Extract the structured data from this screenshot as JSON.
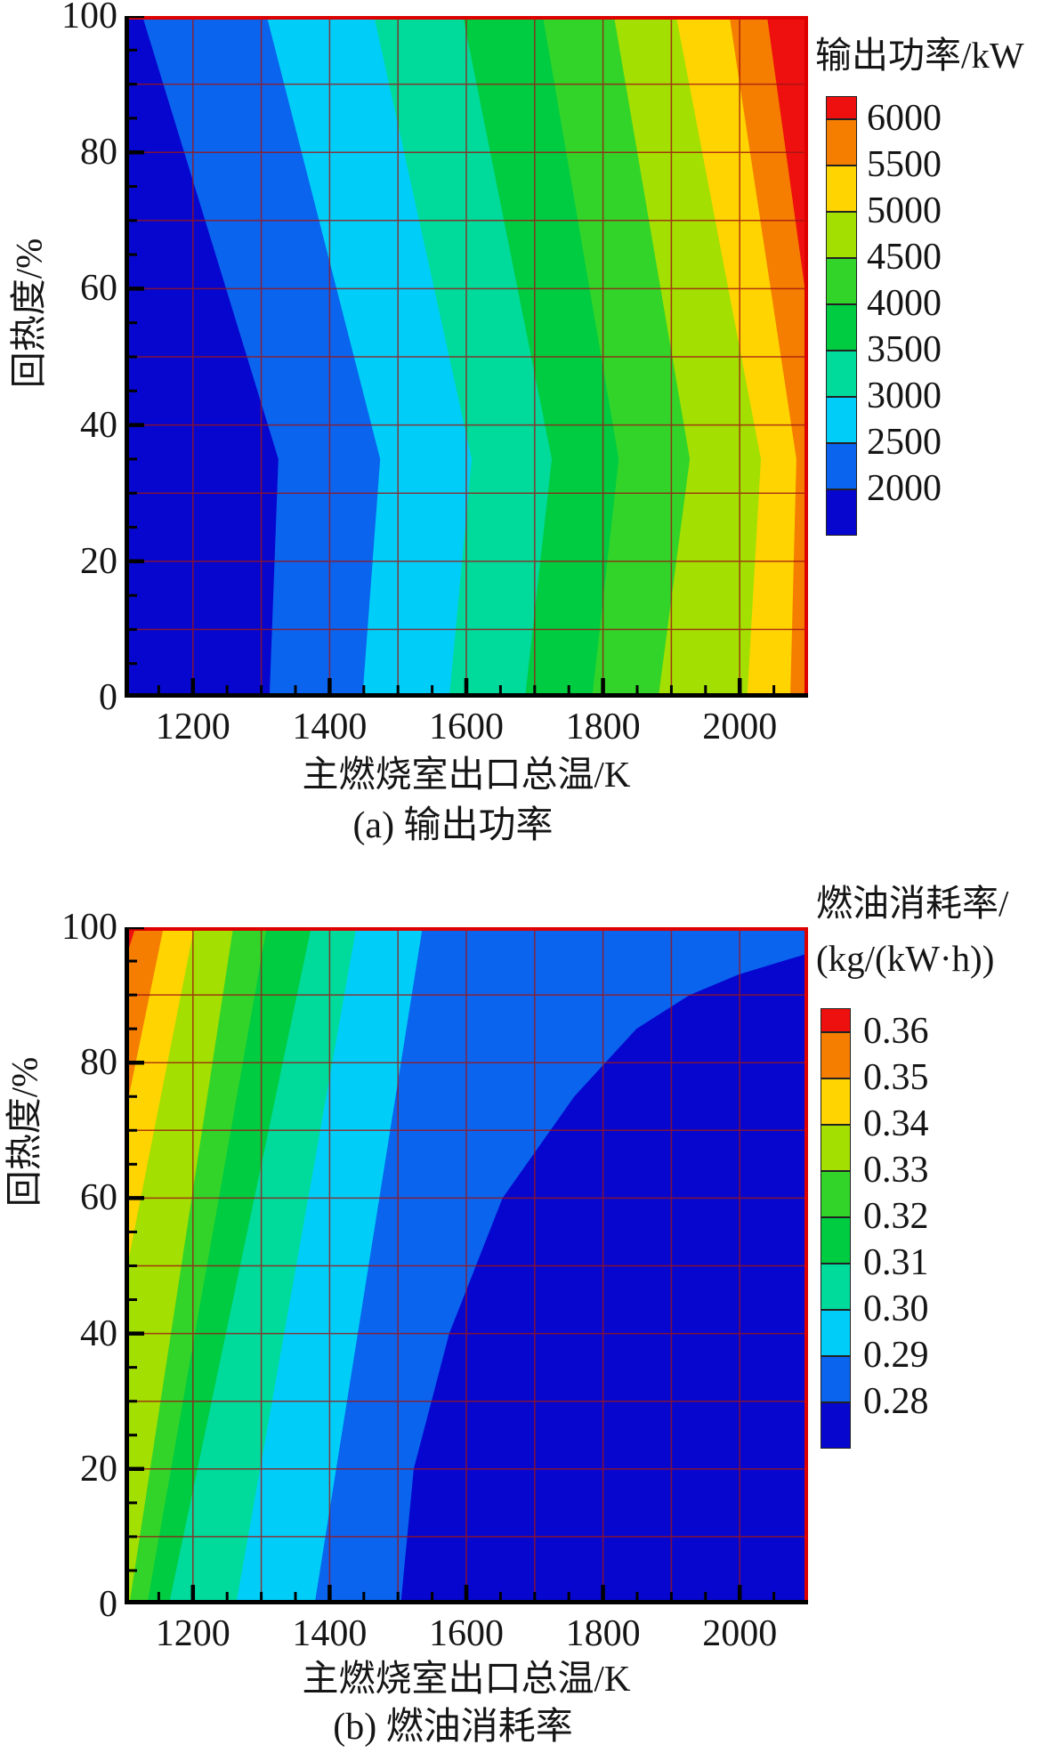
{
  "page": {
    "background": "#FFFFFF"
  },
  "styles": {
    "frame_color": "#DE0000",
    "axis_color": "#000000",
    "grid_color": "#9E1414",
    "tick_color": "#000000"
  },
  "chart_data": [
    {
      "type": "contour",
      "panel_caption": "(a) 输出功率",
      "xlabel": "主燃烧室出口总温/K",
      "ylabel": "回热度/%",
      "legend_title_lines": [
        "输出功率/kW"
      ],
      "legend_labels": [
        "6000",
        "5500",
        "5000",
        "4500",
        "4000",
        "3500",
        "3000",
        "2500",
        "2000"
      ],
      "legend_colors_top_to_bottom": [
        "#EE0F0F",
        "#F57D00",
        "#FFD400",
        "#A3DF00",
        "#32D42A",
        "#00CC41",
        "#00DA9B",
        "#00CEF8",
        "#0A64EE",
        "#0706CE"
      ],
      "x_range": [
        1100,
        2100
      ],
      "y_range": [
        0,
        100
      ],
      "x_tick_labels": [
        "1200",
        "1400",
        "1600",
        "1800",
        "2000"
      ],
      "x_major_ticks": [
        1200,
        1400,
        1600,
        1800,
        2000
      ],
      "x_minor_step": 50,
      "y_tick_labels": [
        "0",
        "20",
        "40",
        "60",
        "80",
        "100"
      ],
      "y_major_ticks": [
        0,
        20,
        40,
        60,
        80,
        100
      ],
      "y_minor_step": 5,
      "grid_x_step": 100,
      "grid_y_step": 10,
      "band_colors_left_to_right": [
        "#0706CE",
        "#0A64EE",
        "#00CEF8",
        "#00DA9B",
        "#00CC41",
        "#32D42A",
        "#A3DF00",
        "#FFD400",
        "#F57D00",
        "#EE0F0F"
      ],
      "contour_levels": [
        2000,
        2500,
        3000,
        3500,
        4000,
        4500,
        5000,
        5500,
        6000
      ],
      "contour_lines": [
        {
          "level": 2000,
          "points": [
            [
              1312,
              0
            ],
            [
              1325,
              35
            ],
            [
              1126,
              100
            ]
          ]
        },
        {
          "level": 2500,
          "points": [
            [
              1448,
              0
            ],
            [
              1474,
              35
            ],
            [
              1308,
              100
            ]
          ]
        },
        {
          "level": 3000,
          "points": [
            [
              1575,
              0
            ],
            [
              1608,
              35
            ],
            [
              1465,
              100
            ]
          ]
        },
        {
          "level": 3500,
          "points": [
            [
              1686,
              0
            ],
            [
              1725,
              35
            ],
            [
              1595,
              100
            ]
          ]
        },
        {
          "level": 4000,
          "points": [
            [
              1784,
              0
            ],
            [
              1823,
              35
            ],
            [
              1712,
              100
            ]
          ]
        },
        {
          "level": 4500,
          "points": [
            [
              1881,
              0
            ],
            [
              1927,
              35
            ],
            [
              1816,
              100
            ]
          ]
        },
        {
          "level": 5000,
          "points": [
            [
              2011,
              0
            ],
            [
              2031,
              35
            ],
            [
              1907,
              100
            ]
          ]
        },
        {
          "level": 5500,
          "points": [
            [
              2074,
              0
            ],
            [
              2083,
              35
            ],
            [
              1985,
              100
            ]
          ]
        },
        {
          "level": 6000,
          "points": [
            [
              2161,
              0
            ],
            [
              2130,
              35
            ],
            [
              2040,
              100
            ]
          ]
        }
      ]
    },
    {
      "type": "contour",
      "panel_caption": "(b) 燃油消耗率",
      "xlabel": "主燃烧室出口总温/K",
      "ylabel": "回热度/%",
      "legend_title_lines": [
        "燃油消耗率/",
        "(kg/(kW·h))"
      ],
      "legend_labels": [
        "0.36",
        "0.35",
        "0.34",
        "0.33",
        "0.32",
        "0.31",
        "0.30",
        "0.29",
        "0.28"
      ],
      "legend_colors_top_to_bottom": [
        "#EE0F0F",
        "#F57D00",
        "#FFD400",
        "#A3DF00",
        "#32D42A",
        "#00CC41",
        "#00DA9B",
        "#00CEF8",
        "#0A64EE",
        "#0706CE"
      ],
      "x_range": [
        1100,
        2100
      ],
      "y_range": [
        0,
        100
      ],
      "x_tick_labels": [
        "1200",
        "1400",
        "1600",
        "1800",
        "2000"
      ],
      "x_major_ticks": [
        1200,
        1400,
        1600,
        1800,
        2000
      ],
      "x_minor_step": 50,
      "y_tick_labels": [
        "0",
        "20",
        "40",
        "60",
        "80",
        "100"
      ],
      "y_major_ticks": [
        0,
        20,
        40,
        60,
        80,
        100
      ],
      "y_minor_step": 5,
      "grid_x_step": 100,
      "grid_y_step": 10,
      "band_colors_left_to_right": [
        "#EE0F0F",
        "#F57D00",
        "#FFD400",
        "#A3DF00",
        "#32D42A",
        "#00CC41",
        "#00DA9B",
        "#00CEF8",
        "#0A64EE",
        "#0706CE"
      ],
      "contour_levels": [
        0.36,
        0.35,
        0.34,
        0.33,
        0.32,
        0.31,
        0.3,
        0.29,
        0.28
      ],
      "contour_lines": [
        {
          "level": 0.36,
          "points": [
            [
              803,
              0
            ],
            [
              1116,
              100
            ]
          ]
        },
        {
          "level": 0.35,
          "points": [
            [
              953,
              0
            ],
            [
              1157,
              100
            ]
          ]
        },
        {
          "level": 0.34,
          "points": [
            [
              1006,
              0
            ],
            [
              1202,
              100
            ]
          ]
        },
        {
          "level": 0.33,
          "points": [
            [
              1107,
              0
            ],
            [
              1259,
              100
            ]
          ]
        },
        {
          "level": 0.32,
          "points": [
            [
              1133,
              0
            ],
            [
              1308,
              100
            ]
          ]
        },
        {
          "level": 0.31,
          "points": [
            [
              1165,
              0
            ],
            [
              1373,
              100
            ]
          ]
        },
        {
          "level": 0.3,
          "points": [
            [
              1263,
              0
            ],
            [
              1439,
              100
            ]
          ]
        },
        {
          "level": 0.29,
          "points": [
            [
              1378,
              0
            ],
            [
              1536,
              100
            ]
          ]
        },
        {
          "level": 0.28,
          "points": [
            [
              1504,
              0
            ],
            [
              1523,
              20
            ],
            [
              1575,
              40
            ],
            [
              1653,
              60
            ],
            [
              1758,
              75
            ],
            [
              1849,
              85
            ],
            [
              1927,
              90
            ],
            [
              1998,
              93
            ],
            [
              2096,
              96
            ],
            [
              2118,
              97
            ]
          ]
        }
      ]
    }
  ]
}
